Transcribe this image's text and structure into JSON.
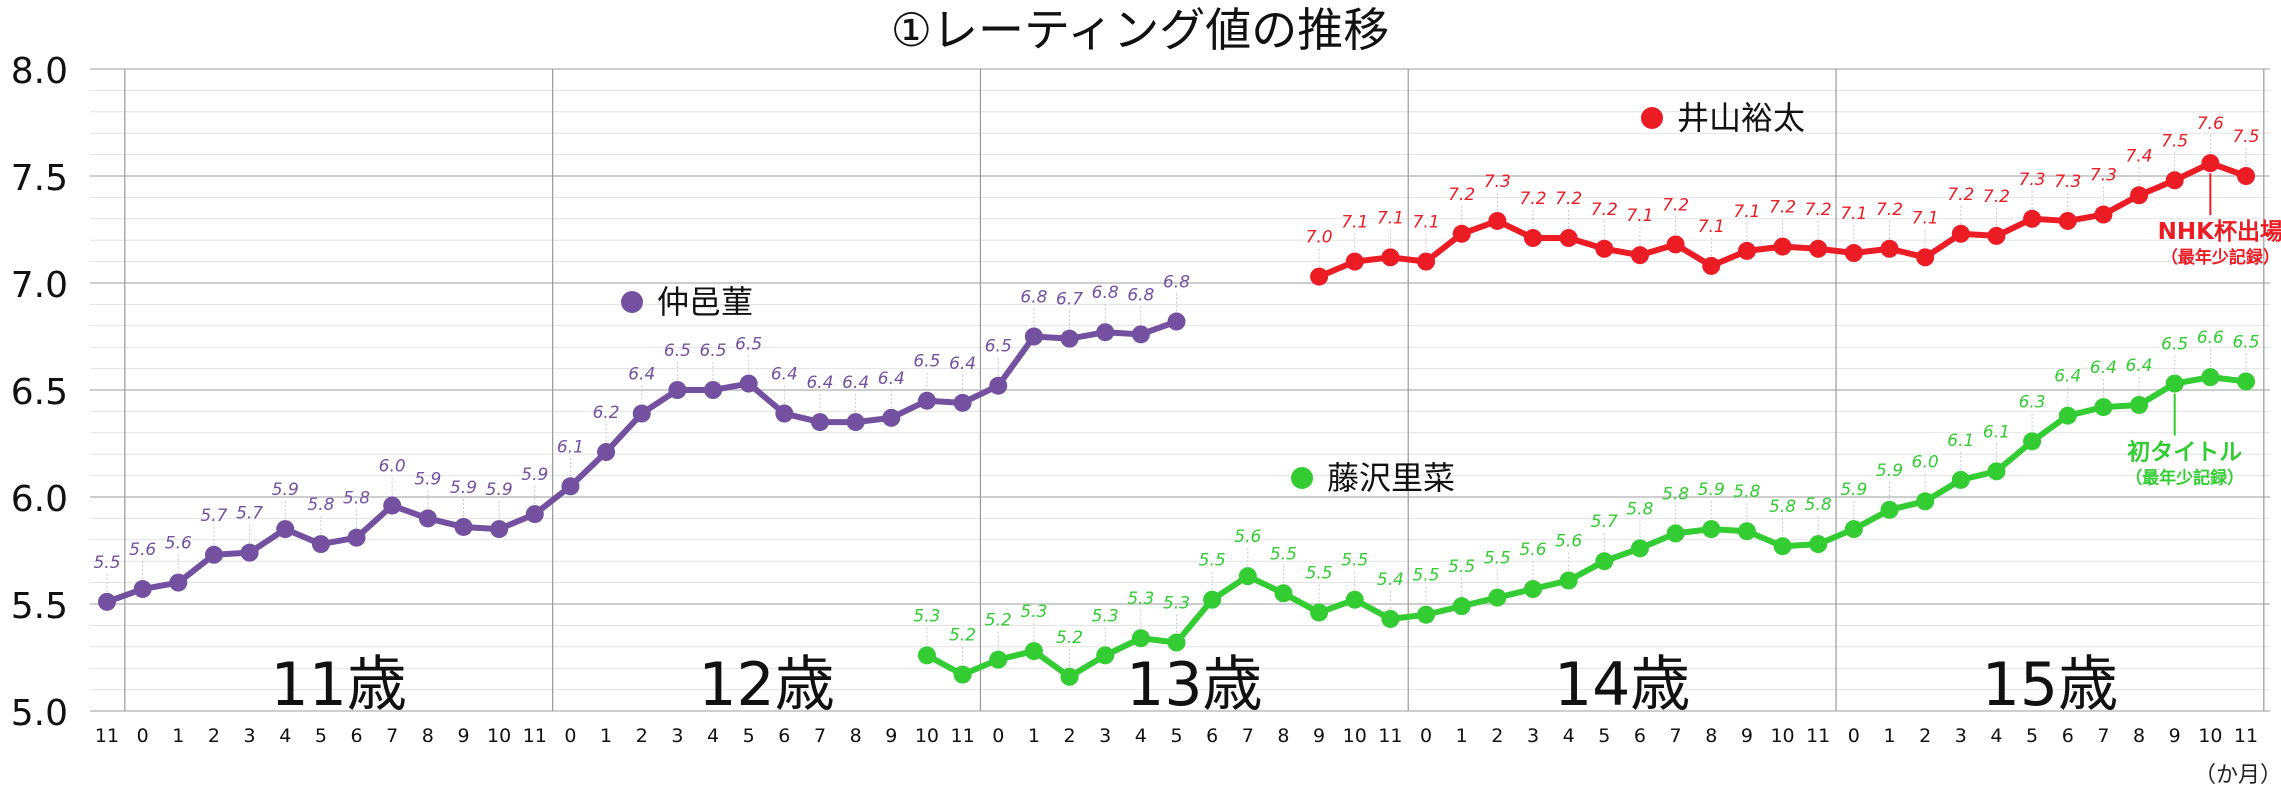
{
  "title": "①レーティング値の推移",
  "unit": "（か月）",
  "chart_data": {
    "type": "line",
    "ylim": [
      5.0,
      8.0
    ],
    "y_ticks": [
      "5.0",
      "5.5",
      "6.0",
      "6.5",
      "7.0",
      "7.5",
      "8.0"
    ],
    "x_tick_labels": [
      "11",
      "0",
      "1",
      "2",
      "3",
      "4",
      "5",
      "6",
      "7",
      "8",
      "9",
      "10",
      "11",
      "0",
      "1",
      "2",
      "3",
      "4",
      "5",
      "6",
      "7",
      "8",
      "9",
      "10",
      "11",
      "0",
      "1",
      "2",
      "3",
      "4",
      "5",
      "6",
      "7",
      "8",
      "9",
      "10",
      "11",
      "0",
      "1",
      "2",
      "3",
      "4",
      "5",
      "6",
      "7",
      "8",
      "9",
      "10",
      "11",
      "0",
      "1",
      "2",
      "3",
      "4",
      "5",
      "6",
      "7",
      "8",
      "9",
      "10",
      "11"
    ],
    "age_labels": [
      "11歳",
      "12歳",
      "13歳",
      "14歳",
      "15歳"
    ],
    "grid": true,
    "series": [
      {
        "name": "仲邑菫",
        "color": "#7451a0",
        "start_index": 0,
        "values": [
          5.51,
          5.57,
          5.6,
          5.73,
          5.74,
          5.85,
          5.78,
          5.81,
          5.96,
          5.9,
          5.86,
          5.85,
          5.92,
          6.05,
          6.21,
          6.39,
          6.5,
          6.5,
          6.53,
          6.39,
          6.35,
          6.35,
          6.37,
          6.45,
          6.44,
          6.52,
          6.75,
          6.74,
          6.77,
          6.76,
          6.82
        ],
        "labels": [
          "5.5",
          "5.6",
          "5.6",
          "5.7",
          "5.7",
          "5.9",
          "5.8",
          "5.8",
          "6.0",
          "5.9",
          "5.9",
          "5.9",
          "5.9",
          "6.1",
          "6.2",
          "6.4",
          "6.5",
          "6.5",
          "6.5",
          "6.4",
          "6.4",
          "6.4",
          "6.4",
          "6.5",
          "6.4",
          "6.5",
          "6.8",
          "6.7",
          "6.8",
          "6.8",
          "6.8"
        ]
      },
      {
        "name": "井山裕太",
        "color": "#ec1c24",
        "start_index": 34,
        "values": [
          7.03,
          7.1,
          7.12,
          7.1,
          7.23,
          7.29,
          7.21,
          7.21,
          7.16,
          7.13,
          7.18,
          7.08,
          7.15,
          7.17,
          7.16,
          7.14,
          7.16,
          7.12,
          7.23,
          7.22,
          7.3,
          7.29,
          7.32,
          7.41,
          7.48,
          7.56,
          7.5
        ],
        "labels": [
          "7.0",
          "7.1",
          "7.1",
          "7.1",
          "7.2",
          "7.3",
          "7.2",
          "7.2",
          "7.2",
          "7.1",
          "7.2",
          "7.1",
          "7.1",
          "7.2",
          "7.2",
          "7.1",
          "7.2",
          "7.1",
          "7.2",
          "7.2",
          "7.3",
          "7.3",
          "7.3",
          "7.4",
          "7.5",
          "7.6",
          "7.5"
        ]
      },
      {
        "name": "藤沢里菜",
        "color": "#33cc33",
        "start_index": 23,
        "values": [
          5.26,
          5.17,
          5.24,
          5.28,
          5.16,
          5.26,
          5.34,
          5.32,
          5.52,
          5.63,
          5.55,
          5.46,
          5.52,
          5.43,
          5.45,
          5.49,
          5.53,
          5.57,
          5.61,
          5.7,
          5.76,
          5.83,
          5.85,
          5.84,
          5.77,
          5.78,
          5.85,
          5.94,
          5.98,
          6.08,
          6.12,
          6.26,
          6.38,
          6.42,
          6.43,
          6.53,
          6.56,
          6.54
        ],
        "labels": [
          "5.3",
          "5.2",
          "5.2",
          "5.3",
          "5.2",
          "5.3",
          "5.3",
          "5.3",
          "5.5",
          "5.6",
          "5.5",
          "5.5",
          "5.5",
          "5.4",
          "5.5",
          "5.5",
          "5.5",
          "5.6",
          "5.6",
          "5.7",
          "5.8",
          "5.8",
          "5.9",
          "5.8",
          "5.8",
          "5.8",
          "5.9",
          "5.9",
          "6.0",
          "6.1",
          "6.1",
          "6.3",
          "6.4",
          "6.4",
          "6.4",
          "6.5",
          "6.6",
          "6.5"
        ]
      }
    ],
    "annotations": [
      {
        "series": 1,
        "point": 25,
        "text": "NHK杯出場",
        "sub": "（最年少記録）",
        "color": "#ec1c24"
      },
      {
        "series": 2,
        "point": 35,
        "text": "初タイトル",
        "sub": "（最年少記録）",
        "color": "#33cc33"
      }
    ]
  }
}
